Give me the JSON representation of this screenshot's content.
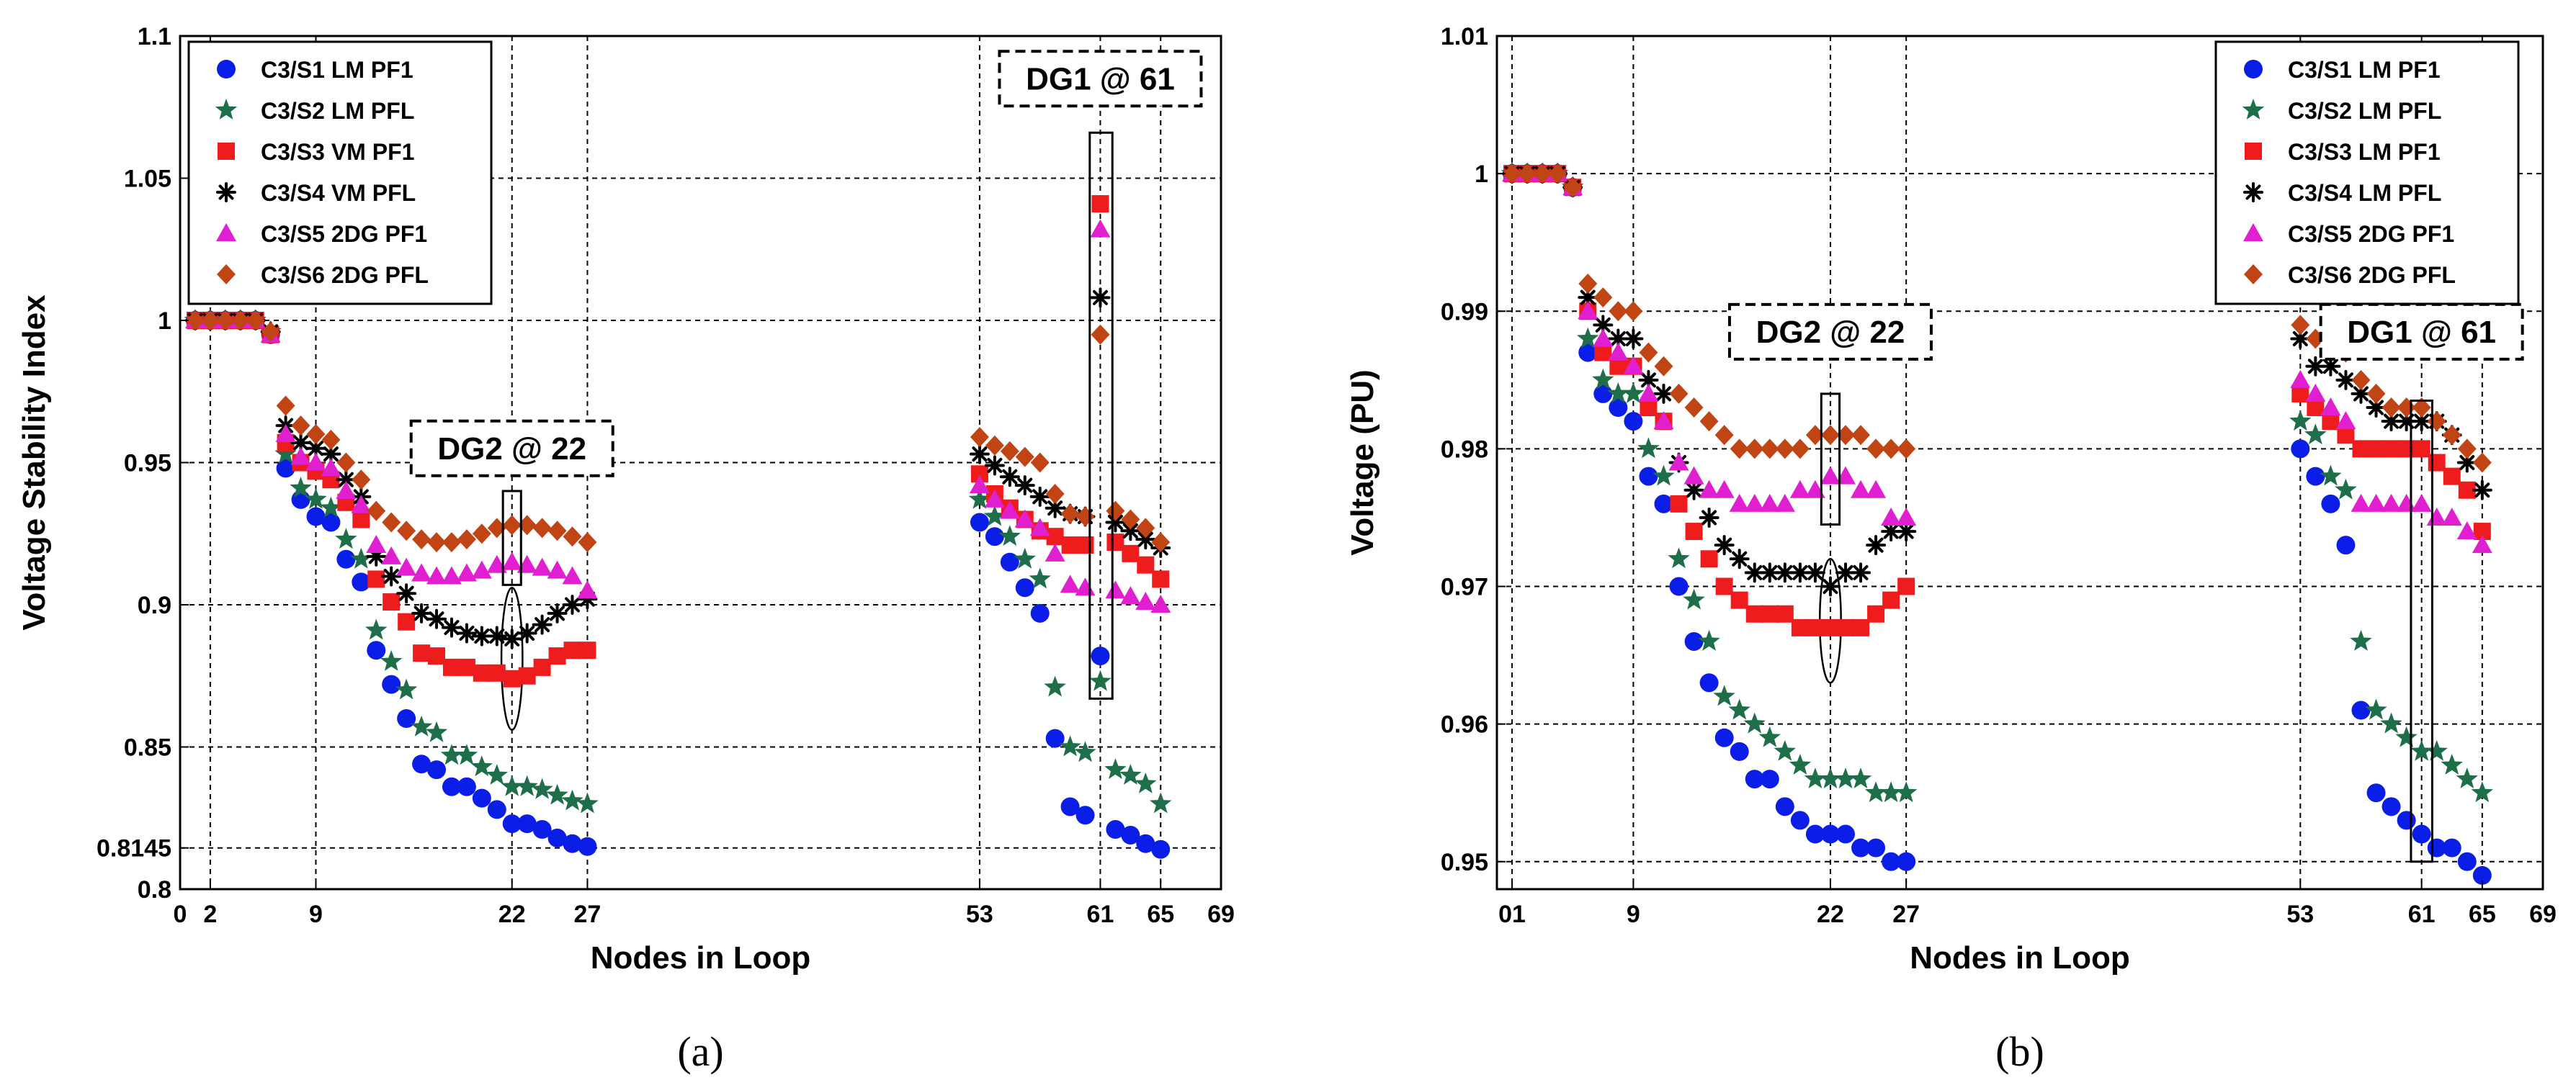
{
  "chart_data": [
    {
      "type": "scatter",
      "caption": "(a)",
      "xlabel": "Nodes in Loop",
      "ylabel": "Voltage Stability Index",
      "xlim": [
        0,
        69
      ],
      "ylim": [
        0.8,
        1.1
      ],
      "xticks": [
        {
          "v": 0,
          "label": "0"
        },
        {
          "v": 2,
          "label": "2"
        },
        {
          "v": 9,
          "label": "9"
        },
        {
          "v": 22,
          "label": "22"
        },
        {
          "v": 27,
          "label": "27"
        },
        {
          "v": 53,
          "label": "53"
        },
        {
          "v": 61,
          "label": "61"
        },
        {
          "v": 65,
          "label": "65"
        },
        {
          "v": 69,
          "label": "69"
        }
      ],
      "yticks": [
        {
          "v": 0.8,
          "label": "0.8"
        },
        {
          "v": 0.8145,
          "label": "0.8145"
        },
        {
          "v": 0.85,
          "label": "0.85"
        },
        {
          "v": 0.9,
          "label": "0.9"
        },
        {
          "v": 0.95,
          "label": "0.95"
        },
        {
          "v": 1.0,
          "label": "1"
        },
        {
          "v": 1.05,
          "label": "1.05"
        },
        {
          "v": 1.1,
          "label": "1.1"
        }
      ],
      "grid": true,
      "legend_position": "top-left",
      "gap": {
        "from": 27,
        "to": 53
      },
      "x": [
        1,
        2,
        3,
        4,
        5,
        6,
        7,
        8,
        9,
        10,
        11,
        12,
        13,
        14,
        15,
        16,
        17,
        18,
        19,
        20,
        21,
        22,
        23,
        24,
        25,
        26,
        27,
        53,
        54,
        55,
        56,
        57,
        58,
        59,
        60,
        61,
        62,
        63,
        64,
        65
      ],
      "series": [
        {
          "name": "C3/S1 LM PF1",
          "marker": "circle",
          "color": "#0b1ee8",
          "values": [
            1.0,
            1.0,
            1.0,
            1.0,
            1.0,
            0.995,
            0.948,
            0.937,
            0.931,
            0.929,
            0.916,
            0.908,
            0.884,
            0.872,
            0.86,
            0.844,
            0.842,
            0.836,
            0.836,
            0.832,
            0.828,
            0.823,
            0.823,
            0.821,
            0.818,
            0.816,
            0.815,
            0.929,
            0.924,
            0.915,
            0.906,
            0.897,
            0.853,
            0.829,
            0.826,
            0.882,
            0.821,
            0.819,
            0.816,
            0.814
          ]
        },
        {
          "name": "C3/S2 LM PFL",
          "marker": "star",
          "color": "#1f6e4a",
          "values": [
            1.0,
            1.0,
            1.0,
            1.0,
            1.0,
            0.996,
            0.953,
            0.941,
            0.937,
            0.934,
            0.923,
            0.916,
            0.891,
            0.88,
            0.87,
            0.857,
            0.855,
            0.847,
            0.847,
            0.843,
            0.84,
            0.836,
            0.836,
            0.835,
            0.833,
            0.831,
            0.83,
            0.937,
            0.931,
            0.924,
            0.916,
            0.909,
            0.871,
            0.85,
            0.848,
            0.873,
            0.842,
            0.84,
            0.837,
            0.83
          ]
        },
        {
          "name": "C3/S3 VM PF1",
          "marker": "square",
          "color": "#ee1c1c",
          "values": [
            1.0,
            1.0,
            1.0,
            1.0,
            1.0,
            0.995,
            0.957,
            0.95,
            0.947,
            0.944,
            0.936,
            0.93,
            0.909,
            0.901,
            0.894,
            0.883,
            0.882,
            0.878,
            0.878,
            0.876,
            0.876,
            0.874,
            0.875,
            0.878,
            0.882,
            0.884,
            0.884,
            0.946,
            0.939,
            0.934,
            0.93,
            0.926,
            0.924,
            0.921,
            0.921,
            1.041,
            0.922,
            0.918,
            0.914,
            0.909
          ]
        },
        {
          "name": "C3/S4 VM PFL",
          "marker": "asterisk",
          "color": "#000000",
          "values": [
            1.0,
            1.0,
            1.0,
            1.0,
            1.0,
            0.996,
            0.963,
            0.957,
            0.955,
            0.953,
            0.944,
            0.938,
            0.917,
            0.91,
            0.904,
            0.897,
            0.895,
            0.892,
            0.89,
            0.889,
            0.889,
            0.888,
            0.89,
            0.893,
            0.897,
            0.9,
            0.902,
            0.953,
            0.949,
            0.945,
            0.942,
            0.938,
            0.934,
            0.932,
            0.931,
            1.008,
            0.929,
            0.926,
            0.923,
            0.92
          ]
        },
        {
          "name": "C3/S5 2DG PF1",
          "marker": "triangle",
          "color": "#e020d0",
          "values": [
            1.0,
            1.0,
            1.0,
            1.0,
            1.0,
            0.995,
            0.96,
            0.952,
            0.95,
            0.948,
            0.94,
            0.935,
            0.921,
            0.917,
            0.913,
            0.911,
            0.91,
            0.91,
            0.911,
            0.912,
            0.914,
            0.915,
            0.914,
            0.913,
            0.912,
            0.91,
            0.905,
            0.942,
            0.937,
            0.933,
            0.93,
            0.927,
            0.918,
            0.907,
            0.906,
            1.032,
            0.905,
            0.903,
            0.901,
            0.9
          ]
        },
        {
          "name": "C3/S6 2DG PFL",
          "marker": "diamond",
          "color": "#c04414",
          "values": [
            1.0,
            1.0,
            1.0,
            1.0,
            1.0,
            0.996,
            0.97,
            0.963,
            0.96,
            0.958,
            0.95,
            0.944,
            0.933,
            0.929,
            0.926,
            0.923,
            0.922,
            0.922,
            0.923,
            0.925,
            0.927,
            0.928,
            0.928,
            0.927,
            0.926,
            0.924,
            0.922,
            0.959,
            0.956,
            0.954,
            0.952,
            0.95,
            0.939,
            0.932,
            0.931,
            0.995,
            0.933,
            0.93,
            0.927,
            0.922
          ]
        }
      ],
      "annotations": [
        {
          "label": "DG2 @ 22",
          "label_x": 22,
          "label_y": 0.955,
          "box_x": [
            21.4,
            22.6
          ],
          "box_y": [
            0.907,
            0.94
          ]
        },
        {
          "label": "DG1 @ 61",
          "label_x": 61,
          "label_y": 1.085,
          "box_x": [
            60.3,
            61.8
          ],
          "box_y": [
            0.867,
            1.066
          ]
        }
      ],
      "ellipses": [
        {
          "cx": 22,
          "cy": 0.881,
          "rx": 0.7,
          "ry": 0.025
        }
      ]
    },
    {
      "type": "scatter",
      "caption": "(b)",
      "xlabel": "Nodes in Loop",
      "ylabel": "Voltage (PU)",
      "xlim": [
        0,
        69
      ],
      "ylim": [
        0.948,
        1.01
      ],
      "xticks": [
        {
          "v": 1,
          "label": "01"
        },
        {
          "v": 9,
          "label": "9"
        },
        {
          "v": 22,
          "label": "22"
        },
        {
          "v": 27,
          "label": "27"
        },
        {
          "v": 53,
          "label": "53"
        },
        {
          "v": 61,
          "label": "61"
        },
        {
          "v": 65,
          "label": "65"
        },
        {
          "v": 69,
          "label": "69"
        }
      ],
      "yticks": [
        {
          "v": 0.95,
          "label": "0.95"
        },
        {
          "v": 0.96,
          "label": "0.96"
        },
        {
          "v": 0.97,
          "label": "0.97"
        },
        {
          "v": 0.98,
          "label": "0.98"
        },
        {
          "v": 0.99,
          "label": "0.99"
        },
        {
          "v": 1.0,
          "label": "1"
        },
        {
          "v": 1.01,
          "label": "1.01"
        }
      ],
      "grid": true,
      "legend_position": "top-right",
      "gap": {
        "from": 27,
        "to": 53
      },
      "x": [
        1,
        2,
        3,
        4,
        5,
        6,
        7,
        8,
        9,
        10,
        11,
        12,
        13,
        14,
        15,
        16,
        17,
        18,
        19,
        20,
        21,
        22,
        23,
        24,
        25,
        26,
        27,
        53,
        54,
        55,
        56,
        57,
        58,
        59,
        60,
        61,
        62,
        63,
        64,
        65
      ],
      "series": [
        {
          "name": "C3/S1 LM PF1",
          "marker": "circle",
          "color": "#0b1ee8",
          "values": [
            1.0,
            1.0,
            1.0,
            1.0,
            0.999,
            0.987,
            0.984,
            0.983,
            0.982,
            0.978,
            0.976,
            0.97,
            0.966,
            0.963,
            0.959,
            0.958,
            0.956,
            0.956,
            0.954,
            0.953,
            0.952,
            0.952,
            0.952,
            0.951,
            0.951,
            0.95,
            0.95,
            0.98,
            0.978,
            0.976,
            0.973,
            0.961,
            0.955,
            0.954,
            0.953,
            0.952,
            0.951,
            0.951,
            0.95,
            0.949
          ]
        },
        {
          "name": "C3/S2 LM PFL",
          "marker": "star",
          "color": "#1f6e4a",
          "values": [
            1.0,
            1.0,
            1.0,
            1.0,
            0.999,
            0.988,
            0.985,
            0.984,
            0.984,
            0.98,
            0.978,
            0.972,
            0.969,
            0.966,
            0.962,
            0.961,
            0.96,
            0.959,
            0.958,
            0.957,
            0.956,
            0.956,
            0.956,
            0.956,
            0.955,
            0.955,
            0.955,
            0.982,
            0.981,
            0.978,
            0.977,
            0.966,
            0.961,
            0.96,
            0.959,
            0.958,
            0.958,
            0.957,
            0.956,
            0.955
          ]
        },
        {
          "name": "C3/S3 LM PF1",
          "marker": "square",
          "color": "#ee1c1c",
          "values": [
            1.0,
            1.0,
            1.0,
            1.0,
            0.999,
            0.99,
            0.987,
            0.986,
            0.986,
            0.983,
            0.982,
            0.976,
            0.974,
            0.972,
            0.97,
            0.969,
            0.968,
            0.968,
            0.968,
            0.967,
            0.967,
            0.967,
            0.967,
            0.967,
            0.968,
            0.969,
            0.97,
            0.984,
            0.983,
            0.982,
            0.981,
            0.98,
            0.98,
            0.98,
            0.98,
            0.98,
            0.979,
            0.978,
            0.977,
            0.974
          ]
        },
        {
          "name": "C3/S4 LM PFL",
          "marker": "asterisk",
          "color": "#000000",
          "values": [
            1.0,
            1.0,
            1.0,
            1.0,
            0.999,
            0.991,
            0.989,
            0.988,
            0.988,
            0.985,
            0.984,
            0.979,
            0.977,
            0.975,
            0.973,
            0.972,
            0.971,
            0.971,
            0.971,
            0.971,
            0.971,
            0.97,
            0.971,
            0.971,
            0.973,
            0.974,
            0.974,
            0.988,
            0.986,
            0.986,
            0.985,
            0.984,
            0.983,
            0.982,
            0.982,
            0.982,
            0.982,
            0.981,
            0.979,
            0.977
          ]
        },
        {
          "name": "C3/S5 2DG PF1",
          "marker": "triangle",
          "color": "#e020d0",
          "values": [
            1.0,
            1.0,
            1.0,
            1.0,
            0.999,
            0.99,
            0.988,
            0.987,
            0.986,
            0.984,
            0.982,
            0.979,
            0.978,
            0.977,
            0.977,
            0.976,
            0.976,
            0.976,
            0.976,
            0.977,
            0.977,
            0.978,
            0.978,
            0.977,
            0.977,
            0.975,
            0.975,
            0.985,
            0.984,
            0.983,
            0.982,
            0.976,
            0.976,
            0.976,
            0.976,
            0.976,
            0.975,
            0.975,
            0.974,
            0.973
          ]
        },
        {
          "name": "C3/S6 2DG PFL",
          "marker": "diamond",
          "color": "#c04414",
          "values": [
            1.0,
            1.0,
            1.0,
            1.0,
            0.999,
            0.992,
            0.991,
            0.99,
            0.99,
            0.987,
            0.986,
            0.984,
            0.983,
            0.982,
            0.981,
            0.98,
            0.98,
            0.98,
            0.98,
            0.98,
            0.981,
            0.981,
            0.981,
            0.981,
            0.98,
            0.98,
            0.98,
            0.989,
            0.988,
            0.988,
            0.987,
            0.985,
            0.984,
            0.983,
            0.983,
            0.983,
            0.982,
            0.981,
            0.98,
            0.979
          ]
        }
      ],
      "annotations": [
        {
          "label": "DG2 @ 22",
          "label_x": 22,
          "label_y": 0.9885,
          "box_x": [
            21.4,
            22.6
          ],
          "box_y": [
            0.9745,
            0.984
          ]
        },
        {
          "label": "DG1 @ 61",
          "label_x": 61,
          "label_y": 0.9885,
          "box_x": [
            60.3,
            61.7
          ],
          "box_y": [
            0.95,
            0.9835
          ]
        }
      ],
      "ellipses": [
        {
          "cx": 22,
          "cy": 0.9675,
          "rx": 0.7,
          "ry": 0.0045
        }
      ]
    }
  ]
}
